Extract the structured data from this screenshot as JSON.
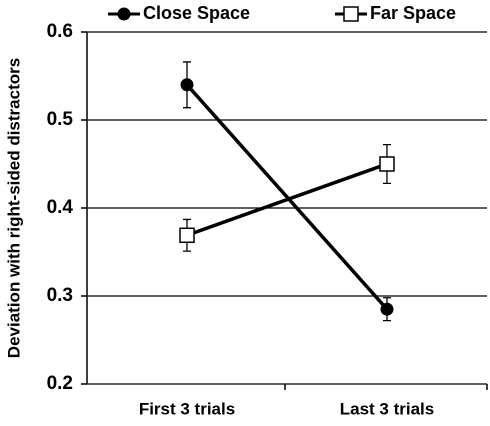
{
  "chart_data": {
    "type": "line",
    "y_label": "Deviation with right-sided distractors",
    "categories": [
      "First 3 trials",
      "Last 3 trials"
    ],
    "series": [
      {
        "name": "Close Space",
        "color": "#000000",
        "marker": "circle",
        "values": [
          0.54,
          0.285
        ],
        "errors": [
          0.026,
          0.013
        ]
      },
      {
        "name": "Far Space",
        "color": "#000000",
        "marker": "square",
        "values": [
          0.369,
          0.45
        ],
        "errors": [
          0.018,
          0.022
        ]
      }
    ],
    "ylim": [
      0.2,
      0.6
    ],
    "yticks": [
      0.2,
      0.3,
      0.4,
      0.5,
      0.6
    ],
    "grid": true,
    "legend": "top"
  }
}
